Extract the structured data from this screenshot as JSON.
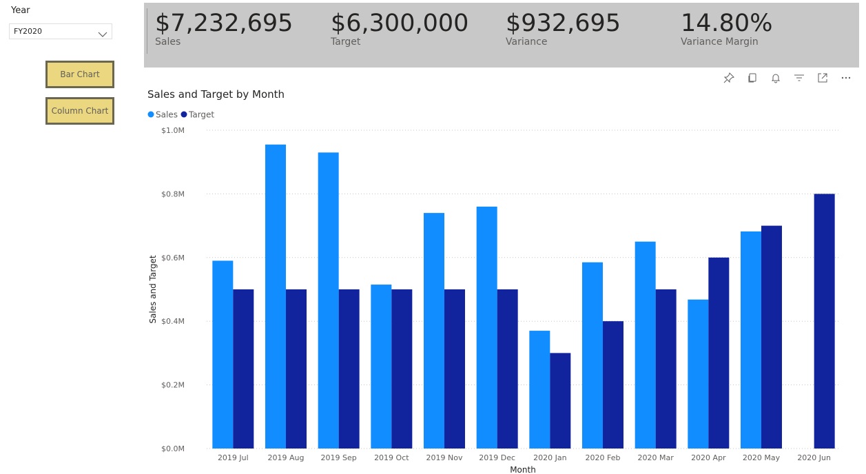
{
  "slicer": {
    "title": "Year",
    "value": "FY2020"
  },
  "buttons": {
    "bar_chart": "Bar Chart",
    "column_chart": "Column Chart"
  },
  "kpis": [
    {
      "value": "$7,232,695",
      "label": "Sales"
    },
    {
      "value": "$6,300,000",
      "label": "Target"
    },
    {
      "value": "$932,695",
      "label": "Variance"
    },
    {
      "value": "14.80%",
      "label": "Variance Margin"
    }
  ],
  "toolbar_icons": [
    "pin-icon",
    "copy-icon",
    "bell-icon",
    "filter-icon",
    "focus-mode-icon",
    "more-options-icon"
  ],
  "colors": {
    "sales": "#118dff",
    "target": "#12239e",
    "kpi_background": "#c8c8c8",
    "button": "#ead77f"
  },
  "chart_data": {
    "type": "bar",
    "title": "Sales and Target by Month",
    "xlabel": "Month",
    "ylabel": "Sales and Target",
    "categories": [
      "2019 Jul",
      "2019 Aug",
      "2019 Sep",
      "2019 Oct",
      "2019 Nov",
      "2019 Dec",
      "2020 Jan",
      "2020 Feb",
      "2020 Mar",
      "2020 Apr",
      "2020 May",
      "2020 Jun"
    ],
    "series": [
      {
        "name": "Sales",
        "color": "#118dff",
        "values": [
          590000,
          955000,
          930000,
          515000,
          740000,
          760000,
          370000,
          585000,
          650000,
          468000,
          682000,
          null
        ]
      },
      {
        "name": "Target",
        "color": "#12239e",
        "values": [
          500000,
          500000,
          500000,
          500000,
          500000,
          500000,
          300000,
          400000,
          500000,
          600000,
          700000,
          800000
        ]
      }
    ],
    "ylim": [
      0,
      1000000
    ],
    "yticks": [
      0,
      200000,
      400000,
      600000,
      800000,
      1000000
    ],
    "ytick_labels": [
      "$0.0M",
      "$0.2M",
      "$0.4M",
      "$0.6M",
      "$0.8M",
      "$1.0M"
    ],
    "grid": true,
    "legend_position": "top-left"
  }
}
